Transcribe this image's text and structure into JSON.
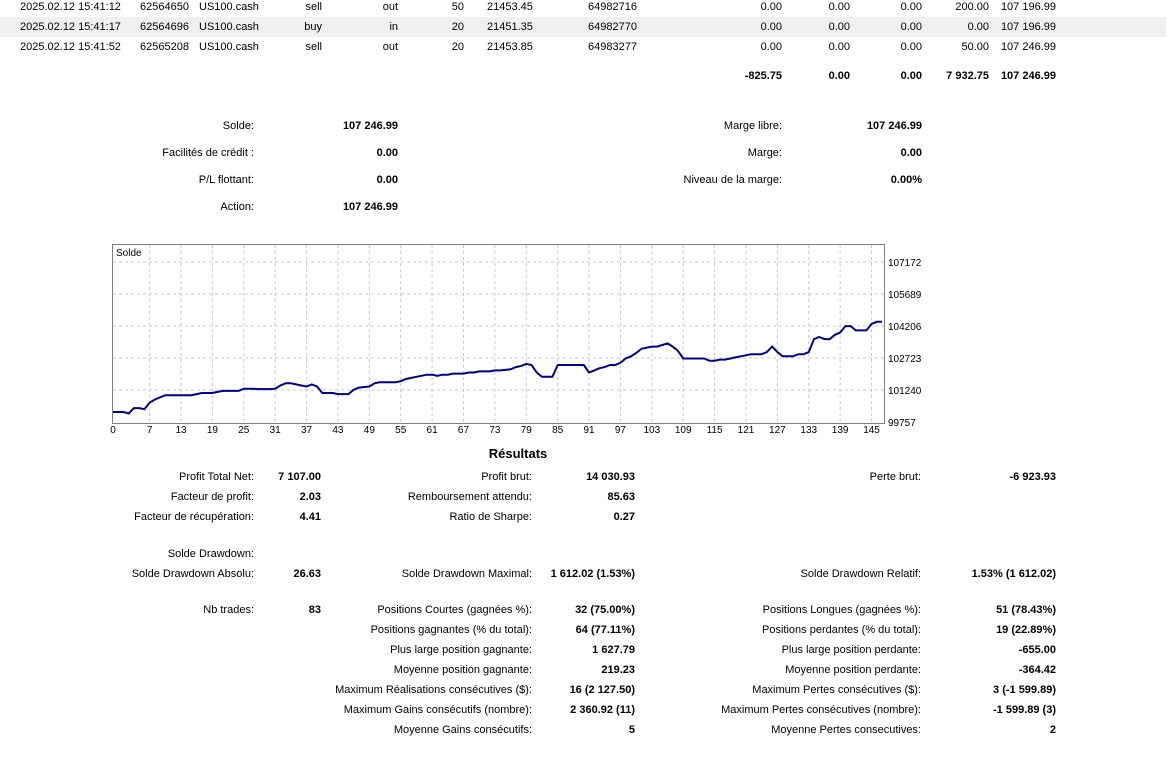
{
  "deals": {
    "rows": [
      {
        "time": "2025.02.12 15:41:12",
        "deal": "62564650",
        "symbol": "US100.cash",
        "type": "sell",
        "direction": "out",
        "volume": "50",
        "price": "21453.45",
        "order": "64982716",
        "commission": "0.00",
        "fee": "0.00",
        "swap": "0.00",
        "profit": "200.00",
        "balance": "107 196.99"
      },
      {
        "time": "2025.02.12 15:41:17",
        "deal": "62564696",
        "symbol": "US100.cash",
        "type": "buy",
        "direction": "in",
        "volume": "20",
        "price": "21451.35",
        "order": "64982770",
        "commission": "0.00",
        "fee": "0.00",
        "swap": "0.00",
        "profit": "0.00",
        "balance": "107 196.99"
      },
      {
        "time": "2025.02.12 15:41:52",
        "deal": "62565208",
        "symbol": "US100.cash",
        "type": "sell",
        "direction": "out",
        "volume": "20",
        "price": "21453.85",
        "order": "64983277",
        "commission": "0.00",
        "fee": "0.00",
        "swap": "0.00",
        "profit": "50.00",
        "balance": "107 246.99"
      }
    ],
    "totals": {
      "commission": "-825.75",
      "fee": "0.00",
      "swap": "0.00",
      "profit": "7 932.75",
      "balance": "107 246.99"
    }
  },
  "account": {
    "solde_label": "Solde:",
    "solde_value": "107 246.99",
    "credit_label": "Facilités de crédit :",
    "credit_value": "0.00",
    "pl_label": "P/L flottant:",
    "pl_value": "0.00",
    "action_label": "Action:",
    "action_value": "107 246.99",
    "marge_libre_label": "Marge libre:",
    "marge_libre_value": "107 246.99",
    "marge_label": "Marge:",
    "marge_value": "0.00",
    "niveau_label": "Niveau de la marge:",
    "niveau_value": "0.00%"
  },
  "chart_data": {
    "type": "line",
    "title": "Solde",
    "ylim": [
      99757,
      107172
    ],
    "yticks": [
      "107172",
      "105689",
      "104206",
      "102723",
      "101240",
      "99757"
    ],
    "xticks": [
      "0",
      "7",
      "13",
      "19",
      "25",
      "31",
      "37",
      "43",
      "49",
      "55",
      "61",
      "67",
      "73",
      "79",
      "85",
      "91",
      "97",
      "103",
      "109",
      "115",
      "121",
      "127",
      "133",
      "139",
      "145"
    ],
    "color": "#00008b",
    "x": [
      0,
      2,
      3,
      4,
      5,
      6,
      7,
      8,
      9,
      10,
      12,
      13,
      15,
      16,
      17,
      18,
      19,
      20,
      21,
      22,
      24,
      25,
      26,
      28,
      29,
      30,
      31,
      32,
      33,
      34,
      36,
      37,
      38,
      39,
      40,
      42,
      43,
      44,
      45,
      46,
      47,
      49,
      50,
      51,
      52,
      53,
      54,
      55,
      56,
      57,
      58,
      60,
      61,
      62,
      63,
      64,
      65,
      67,
      68,
      69,
      70,
      72,
      73,
      74,
      76,
      77,
      78,
      79,
      80,
      81,
      82,
      84,
      85,
      86,
      87,
      88,
      90,
      91,
      92,
      93,
      94,
      95,
      96,
      97,
      98,
      99,
      100,
      101,
      102,
      103,
      104,
      106,
      107,
      108,
      109,
      110,
      111,
      113,
      114,
      115,
      116,
      117,
      118,
      119,
      120,
      121,
      122,
      123,
      124,
      125,
      126,
      127,
      128,
      129,
      130,
      131,
      132,
      133,
      134,
      135,
      136,
      137,
      138,
      139,
      140,
      141,
      142,
      143,
      144,
      145,
      146,
      147
    ],
    "y": [
      100220,
      100220,
      100150,
      100400,
      100400,
      100350,
      100650,
      100800,
      100900,
      101000,
      101000,
      101000,
      101000,
      101050,
      101100,
      101100,
      101100,
      101150,
      101200,
      101200,
      101200,
      101300,
      101300,
      101280,
      101280,
      101280,
      101300,
      101450,
      101550,
      101550,
      101450,
      101400,
      101500,
      101400,
      101100,
      101100,
      101050,
      101050,
      101050,
      101250,
      101350,
      101400,
      101550,
      101600,
      101600,
      101600,
      101600,
      101650,
      101750,
      101800,
      101850,
      101950,
      101950,
      101900,
      101950,
      101950,
      102000,
      102000,
      102050,
      102050,
      102100,
      102100,
      102150,
      102150,
      102200,
      102300,
      102350,
      102450,
      102400,
      102050,
      101850,
      101850,
      102400,
      102400,
      102400,
      102400,
      102400,
      102050,
      102150,
      102250,
      102300,
      102400,
      102400,
      102500,
      102700,
      102800,
      102950,
      103150,
      103200,
      103250,
      103250,
      103400,
      103250,
      103050,
      102700,
      102700,
      102700,
      102700,
      102600,
      102600,
      102650,
      102650,
      102700,
      102750,
      102800,
      102850,
      102900,
      102900,
      102900,
      103000,
      103250,
      103000,
      102800,
      102800,
      102800,
      102900,
      102900,
      103000,
      103600,
      103700,
      103600,
      103600,
      103800,
      103900,
      104200,
      104200,
      104000,
      104000,
      104000,
      104300,
      104400,
      104400
    ]
  },
  "results": {
    "title": "Résultats",
    "profit_total_net_label": "Profit Total Net:",
    "profit_total_net": "7 107.00",
    "profit_brut_label": "Profit brut:",
    "profit_brut": "14 030.93",
    "perte_brut_label": "Perte brut:",
    "perte_brut": "-6 923.93",
    "facteur_profit_label": "Facteur de profit:",
    "facteur_profit": "2.03",
    "remboursement_label": "Remboursement attendu:",
    "remboursement": "85.63",
    "facteur_recup_label": "Facteur de récupération:",
    "facteur_recup": "4.41",
    "sharpe_label": "Ratio de Sharpe:",
    "sharpe": "0.27",
    "solde_drawdown_label": "Solde Drawdown:",
    "drawdown_absolu_label": "Solde Drawdown Absolu:",
    "drawdown_absolu": "26.63",
    "drawdown_max_label": "Solde Drawdown Maximal:",
    "drawdown_max": "1 612.02 (1.53%)",
    "drawdown_relatif_label": "Solde Drawdown Relatif:",
    "drawdown_relatif": "1.53% (1 612.02)",
    "nb_trades_label": "Nb trades:",
    "nb_trades": "83",
    "courtes_label": "Positions Courtes (gagnées %):",
    "courtes": "32 (75.00%)",
    "longues_label": "Positions Longues (gagnées %):",
    "longues": "51 (78.43%)",
    "gagnantes_label": "Positions gagnantes (% du total):",
    "gagnantes": "64 (77.11%)",
    "perdantes_label": "Positions perdantes (% du total):",
    "perdantes": "19 (22.89%)",
    "large_gagnante_label": "Plus large position gagnante:",
    "large_gagnante": "1 627.79",
    "large_perdante_label": "Plus large position perdante:",
    "large_perdante": "-655.00",
    "moy_gagnante_label": "Moyenne position gagnante:",
    "moy_gagnante": "219.23",
    "moy_perdante_label": "Moyenne position perdante:",
    "moy_perdante": "-364.42",
    "max_real_label": "Maximum Réalisations consécutives ($):",
    "max_real": "16 (2 127.50)",
    "max_pertes_label": "Maximum Pertes consécutives ($):",
    "max_pertes": "3 (-1 599.89)",
    "max_gains_nb_label": "Maximum Gains consécutifs (nombre):",
    "max_gains_nb": "2 360.92 (11)",
    "max_pertes_nb_label": "Maximum Pertes consécutives (nombre):",
    "max_pertes_nb": "-1 599.89 (3)",
    "moy_gains_cons_label": "Moyenne Gains consécutifs:",
    "moy_gains_cons": "5",
    "moy_pertes_cons_label": "Moyenne Pertes consecutives:",
    "moy_pertes_cons": "2"
  }
}
